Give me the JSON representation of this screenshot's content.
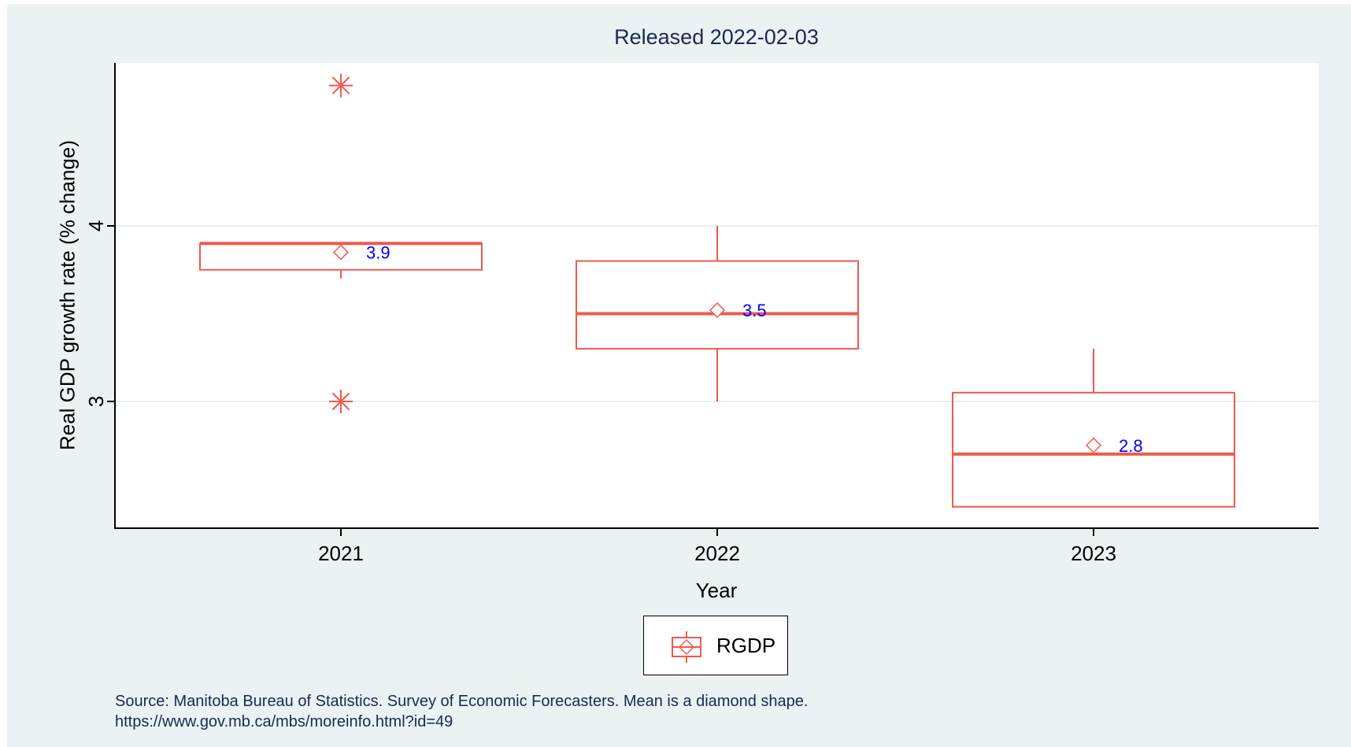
{
  "chart_data": {
    "type": "box",
    "title": "Released 2022-02-03",
    "xlabel": "Year",
    "ylabel": "Real GDP growth rate (% change)",
    "categories": [
      "2021",
      "2022",
      "2023"
    ],
    "y_ticks": [
      3,
      4
    ],
    "ylim": [
      2.25,
      4.9
    ],
    "grid": true,
    "series": [
      {
        "name": "RGDP",
        "color": "#ee5a4f",
        "boxes": [
          {
            "category": "2021",
            "min": 3.7,
            "q1": 3.75,
            "median": 3.9,
            "q3": 3.9,
            "max": 3.9,
            "mean": 3.85,
            "mean_label": "3.9",
            "outliers": [
              4.8,
              3.0
            ]
          },
          {
            "category": "2022",
            "min": 3.0,
            "q1": 3.3,
            "median": 3.5,
            "q3": 3.8,
            "max": 4.0,
            "mean": 3.52,
            "mean_label": "3.5",
            "outliers": []
          },
          {
            "category": "2023",
            "min": 2.4,
            "q1": 2.4,
            "median": 2.7,
            "q3": 3.05,
            "max": 3.3,
            "mean": 2.75,
            "mean_label": "2.8",
            "outliers": []
          }
        ]
      }
    ],
    "legend": {
      "placement": "bottom-center",
      "entries": [
        "RGDP"
      ]
    }
  },
  "source_line1": "Source: Manitoba Bureau of Statistics. Survey of Economic Forecasters. Mean is a diamond shape.",
  "source_line2": "https://www.gov.mb.ca/mbs/moreinfo.html?id=49"
}
